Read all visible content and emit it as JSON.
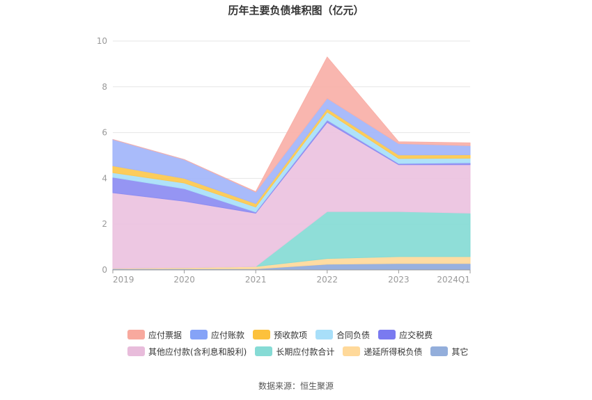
{
  "chart_data": {
    "type": "area",
    "stacked": true,
    "title": "历年主要负债堆积图（亿元）",
    "xlabel": "",
    "ylabel": "",
    "ylim": [
      0,
      10
    ],
    "yticks": [
      0,
      2,
      4,
      6,
      8,
      10
    ],
    "grid": true,
    "legend_position": "bottom",
    "categories": [
      "2019",
      "2020",
      "2021",
      "2022",
      "2023",
      "2024Q1"
    ],
    "series": [
      {
        "name": "其它",
        "color": "#8faadc",
        "values": [
          0.05,
          0.05,
          0.05,
          0.25,
          0.28,
          0.28
        ]
      },
      {
        "name": "递延所得税负债",
        "color": "#ffd99a",
        "values": [
          0.02,
          0.05,
          0.1,
          0.25,
          0.3,
          0.3
        ]
      },
      {
        "name": "长期应付款合计",
        "color": "#86dbd5",
        "values": [
          0,
          0,
          0,
          2.05,
          1.97,
          1.9
        ]
      },
      {
        "name": "其他应付款(含利息和股利)",
        "color": "#ecc2df",
        "values": [
          3.3,
          2.9,
          2.33,
          3.9,
          2.05,
          2.12
        ]
      },
      {
        "name": "应交税费",
        "color": "#8c8cf2",
        "values": [
          0.68,
          0.55,
          0.05,
          0.1,
          0.05,
          0.08
        ]
      },
      {
        "name": "合同负债",
        "color": "#a8dff9",
        "values": [
          0.2,
          0.25,
          0.22,
          0.35,
          0.22,
          0.2
        ]
      },
      {
        "name": "预收款项",
        "color": "#fcc84e",
        "values": [
          0.3,
          0.2,
          0.15,
          0.15,
          0.15,
          0.15
        ]
      },
      {
        "name": "应付账款",
        "color": "#a2b5fa",
        "values": [
          1.15,
          0.82,
          0.5,
          0.45,
          0.5,
          0.4
        ]
      },
      {
        "name": "应付票据",
        "color": "#f9b0a8",
        "values": [
          0,
          0,
          0.02,
          1.8,
          0.08,
          0.12
        ]
      }
    ]
  },
  "legend": {
    "rows": [
      [
        {
          "name": "应付票据",
          "color": "#f8a99e"
        },
        {
          "name": "应付账款",
          "color": "#85a3f7"
        },
        {
          "name": "预收款项",
          "color": "#fcc13c"
        },
        {
          "name": "合同负债",
          "color": "#a8dff9"
        },
        {
          "name": "应交税费",
          "color": "#7a7af0"
        }
      ],
      [
        {
          "name": "其他应付款(含利息和股利)",
          "color": "#e8bcdb"
        },
        {
          "name": "长期应付款合计",
          "color": "#86dbd5"
        },
        {
          "name": "递延所得税负债",
          "color": "#ffd99a"
        },
        {
          "name": "其它",
          "color": "#93aedb"
        }
      ]
    ]
  },
  "source": "数据来源：恒生聚源"
}
